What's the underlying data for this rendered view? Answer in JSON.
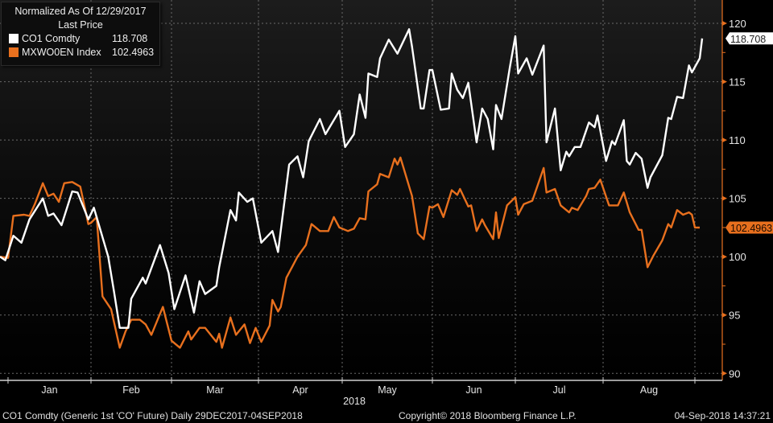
{
  "legend": {
    "title": "Normalized As Of 12/29/2017",
    "subtitle": "Last Price",
    "items": [
      {
        "name": "CO1 Comdty",
        "value": "118.708",
        "color": "#ffffff"
      },
      {
        "name": "MXWO0EN Index",
        "value": "102.4963",
        "color": "#e8701e"
      }
    ]
  },
  "footer": {
    "left": "CO1 Comdty (Generic 1st 'CO' Future)  Daily 29DEC2017-04SEP2018",
    "center": "Copyright© 2018 Bloomberg Finance L.P.",
    "right": "04-Sep-2018 14:37:21"
  },
  "colors": {
    "background": "#000000",
    "axis": "#e8701e",
    "grid": "#6a6a6a"
  },
  "chart_data": {
    "type": "line",
    "title": "Normalized As Of 12/29/2017",
    "xlabel": "2018",
    "ylabel": "",
    "x_type": "date",
    "xlim": [
      "2017-12-29",
      "2018-09-04"
    ],
    "ylim": [
      89.4,
      122
    ],
    "y_axis_side": "right",
    "yticks": [
      90,
      95,
      100,
      105,
      110,
      115,
      120
    ],
    "month_ticks": [
      {
        "date": "2018-01-01",
        "label": "Jan"
      },
      {
        "date": "2018-02-01",
        "label": "Feb"
      },
      {
        "date": "2018-03-01",
        "label": "Mar"
      },
      {
        "date": "2018-04-01",
        "label": "Apr"
      },
      {
        "date": "2018-05-01",
        "label": "May"
      },
      {
        "date": "2018-06-01",
        "label": "Jun"
      },
      {
        "date": "2018-07-01",
        "label": "Jul"
      },
      {
        "date": "2018-08-01",
        "label": "Aug"
      },
      {
        "date": "2018-09-01",
        "label": ""
      }
    ],
    "year_label": "2018",
    "grid": true,
    "legend_position": "top-left",
    "series": [
      {
        "name": "CO1 Comdty",
        "color": "#ffffff",
        "last_value": "118.708",
        "points": [
          [
            "2017-12-29",
            100.0
          ],
          [
            "2017-12-31",
            99.7
          ],
          [
            "2018-01-03",
            101.8
          ],
          [
            "2018-01-06",
            101.2
          ],
          [
            "2018-01-09",
            103.2
          ],
          [
            "2018-01-14",
            105.0
          ],
          [
            "2018-01-16",
            103.5
          ],
          [
            "2018-01-18",
            103.7
          ],
          [
            "2018-01-21",
            102.7
          ],
          [
            "2018-01-25",
            105.6
          ],
          [
            "2018-01-27",
            105.5
          ],
          [
            "2018-01-31",
            103.2
          ],
          [
            "2018-02-02",
            104.2
          ],
          [
            "2018-02-07",
            100.0
          ],
          [
            "2018-02-09",
            97.0
          ],
          [
            "2018-02-11",
            93.9
          ],
          [
            "2018-02-14",
            93.9
          ],
          [
            "2018-02-15",
            96.4
          ],
          [
            "2018-02-19",
            98.2
          ],
          [
            "2018-02-20",
            97.7
          ],
          [
            "2018-02-25",
            101.0
          ],
          [
            "2018-02-28",
            98.6
          ],
          [
            "2018-03-02",
            95.5
          ],
          [
            "2018-03-06",
            98.4
          ],
          [
            "2018-03-09",
            95.2
          ],
          [
            "2018-03-11",
            97.9
          ],
          [
            "2018-03-13",
            96.8
          ],
          [
            "2018-03-17",
            97.5
          ],
          [
            "2018-03-18",
            99.1
          ],
          [
            "2018-03-22",
            104.0
          ],
          [
            "2018-03-24",
            103.1
          ],
          [
            "2018-03-25",
            105.5
          ],
          [
            "2018-03-28",
            104.7
          ],
          [
            "2018-03-30",
            105.0
          ],
          [
            "2018-04-02",
            101.2
          ],
          [
            "2018-04-06",
            102.2
          ],
          [
            "2018-04-08",
            100.4
          ],
          [
            "2018-04-12",
            107.9
          ],
          [
            "2018-04-15",
            108.6
          ],
          [
            "2018-04-17",
            106.8
          ],
          [
            "2018-04-19",
            109.9
          ],
          [
            "2018-04-23",
            111.8
          ],
          [
            "2018-04-25",
            110.5
          ],
          [
            "2018-04-30",
            112.5
          ],
          [
            "2018-05-02",
            109.4
          ],
          [
            "2018-05-05",
            110.5
          ],
          [
            "2018-05-07",
            113.9
          ],
          [
            "2018-05-09",
            111.9
          ],
          [
            "2018-05-10",
            115.7
          ],
          [
            "2018-05-13",
            115.4
          ],
          [
            "2018-05-14",
            117.0
          ],
          [
            "2018-05-17",
            118.6
          ],
          [
            "2018-05-20",
            117.4
          ],
          [
            "2018-05-24",
            119.5
          ],
          [
            "2018-05-25",
            118.0
          ],
          [
            "2018-05-28",
            112.7
          ],
          [
            "2018-05-29",
            112.7
          ],
          [
            "2018-05-31",
            116.0
          ],
          [
            "2018-06-01",
            116.0
          ],
          [
            "2018-06-04",
            112.6
          ],
          [
            "2018-06-07",
            112.7
          ],
          [
            "2018-06-08",
            115.7
          ],
          [
            "2018-06-10",
            114.3
          ],
          [
            "2018-06-12",
            113.6
          ],
          [
            "2018-06-14",
            114.9
          ],
          [
            "2018-06-17",
            109.8
          ],
          [
            "2018-06-19",
            112.7
          ],
          [
            "2018-06-21",
            111.8
          ],
          [
            "2018-06-23",
            109.2
          ],
          [
            "2018-06-24",
            113.0
          ],
          [
            "2018-06-26",
            111.8
          ],
          [
            "2018-06-29",
            116.2
          ],
          [
            "2018-07-01",
            118.9
          ],
          [
            "2018-07-02",
            115.7
          ],
          [
            "2018-07-05",
            117.0
          ],
          [
            "2018-07-07",
            115.6
          ],
          [
            "2018-07-11",
            118.1
          ],
          [
            "2018-07-12",
            109.8
          ],
          [
            "2018-07-15",
            112.7
          ],
          [
            "2018-07-17",
            107.4
          ],
          [
            "2018-07-19",
            109.0
          ],
          [
            "2018-07-20",
            108.6
          ],
          [
            "2018-07-22",
            109.4
          ],
          [
            "2018-07-24",
            109.4
          ],
          [
            "2018-07-27",
            111.5
          ],
          [
            "2018-07-29",
            111.1
          ],
          [
            "2018-07-30",
            112.1
          ],
          [
            "2018-08-02",
            108.2
          ],
          [
            "2018-08-04",
            109.9
          ],
          [
            "2018-08-05",
            109.6
          ],
          [
            "2018-08-08",
            111.7
          ],
          [
            "2018-08-09",
            108.2
          ],
          [
            "2018-08-10",
            107.9
          ],
          [
            "2018-08-12",
            108.9
          ],
          [
            "2018-08-14",
            108.4
          ],
          [
            "2018-08-16",
            105.9
          ],
          [
            "2018-08-17",
            106.8
          ],
          [
            "2018-08-21",
            108.7
          ],
          [
            "2018-08-23",
            111.9
          ],
          [
            "2018-08-24",
            111.8
          ],
          [
            "2018-08-26",
            113.7
          ],
          [
            "2018-08-28",
            113.6
          ],
          [
            "2018-08-30",
            116.4
          ],
          [
            "2018-08-31",
            115.8
          ],
          [
            "2018-09-03",
            117.0
          ],
          [
            "2018-09-04",
            118.708
          ]
        ]
      },
      {
        "name": "MXWO0EN Index",
        "color": "#e8701e",
        "last_value": "102.4963",
        "points": [
          [
            "2017-12-29",
            100.0
          ],
          [
            "2018-01-01",
            99.9
          ],
          [
            "2018-01-03",
            103.5
          ],
          [
            "2018-01-07",
            103.6
          ],
          [
            "2018-01-09",
            103.5
          ],
          [
            "2018-01-11",
            104.5
          ],
          [
            "2018-01-14",
            106.3
          ],
          [
            "2018-01-16",
            105.2
          ],
          [
            "2018-01-18",
            105.4
          ],
          [
            "2018-01-20",
            104.7
          ],
          [
            "2018-01-22",
            106.3
          ],
          [
            "2018-01-25",
            106.4
          ],
          [
            "2018-01-28",
            106.0
          ],
          [
            "2018-01-31",
            102.8
          ],
          [
            "2018-02-01",
            102.9
          ],
          [
            "2018-02-03",
            103.4
          ],
          [
            "2018-02-05",
            96.6
          ],
          [
            "2018-02-08",
            95.5
          ],
          [
            "2018-02-11",
            92.2
          ],
          [
            "2018-02-13",
            93.6
          ],
          [
            "2018-02-15",
            94.6
          ],
          [
            "2018-02-18",
            94.6
          ],
          [
            "2018-02-20",
            94.2
          ],
          [
            "2018-02-22",
            93.3
          ],
          [
            "2018-02-26",
            95.7
          ],
          [
            "2018-03-01",
            92.8
          ],
          [
            "2018-03-04",
            92.2
          ],
          [
            "2018-03-07",
            93.6
          ],
          [
            "2018-03-08",
            92.9
          ],
          [
            "2018-03-11",
            93.9
          ],
          [
            "2018-03-13",
            93.9
          ],
          [
            "2018-03-17",
            92.7
          ],
          [
            "2018-03-18",
            93.4
          ],
          [
            "2018-03-19",
            92.2
          ],
          [
            "2018-03-22",
            94.8
          ],
          [
            "2018-03-24",
            93.3
          ],
          [
            "2018-03-27",
            94.2
          ],
          [
            "2018-03-29",
            92.6
          ],
          [
            "2018-03-31",
            93.9
          ],
          [
            "2018-04-02",
            92.7
          ],
          [
            "2018-04-05",
            94.1
          ],
          [
            "2018-04-06",
            96.3
          ],
          [
            "2018-04-08",
            95.3
          ],
          [
            "2018-04-09",
            95.7
          ],
          [
            "2018-04-11",
            98.2
          ],
          [
            "2018-04-13",
            99.1
          ],
          [
            "2018-04-15",
            100.0
          ],
          [
            "2018-04-18",
            101.0
          ],
          [
            "2018-04-20",
            102.8
          ],
          [
            "2018-04-23",
            102.2
          ],
          [
            "2018-04-26",
            102.2
          ],
          [
            "2018-04-28",
            103.4
          ],
          [
            "2018-04-30",
            102.5
          ],
          [
            "2018-05-03",
            102.2
          ],
          [
            "2018-05-05",
            102.4
          ],
          [
            "2018-05-07",
            103.3
          ],
          [
            "2018-05-09",
            103.2
          ],
          [
            "2018-05-10",
            105.6
          ],
          [
            "2018-05-13",
            106.2
          ],
          [
            "2018-05-14",
            107.1
          ],
          [
            "2018-05-17",
            106.8
          ],
          [
            "2018-05-19",
            108.4
          ],
          [
            "2018-05-20",
            107.9
          ],
          [
            "2018-05-21",
            108.5
          ],
          [
            "2018-05-25",
            105.2
          ],
          [
            "2018-05-27",
            102.0
          ],
          [
            "2018-05-29",
            101.5
          ],
          [
            "2018-05-31",
            104.3
          ],
          [
            "2018-06-01",
            104.2
          ],
          [
            "2018-06-03",
            104.5
          ],
          [
            "2018-06-05",
            103.4
          ],
          [
            "2018-06-08",
            105.7
          ],
          [
            "2018-06-10",
            105.3
          ],
          [
            "2018-06-11",
            105.8
          ],
          [
            "2018-06-14",
            104.3
          ],
          [
            "2018-06-15",
            104.4
          ],
          [
            "2018-06-17",
            102.2
          ],
          [
            "2018-06-19",
            103.2
          ],
          [
            "2018-06-20",
            102.7
          ],
          [
            "2018-06-23",
            101.5
          ],
          [
            "2018-06-24",
            103.8
          ],
          [
            "2018-06-25",
            101.6
          ],
          [
            "2018-06-28",
            104.4
          ],
          [
            "2018-07-01",
            105.1
          ],
          [
            "2018-07-02",
            103.6
          ],
          [
            "2018-07-04",
            104.5
          ],
          [
            "2018-07-07",
            104.8
          ],
          [
            "2018-07-11",
            107.6
          ],
          [
            "2018-07-12",
            105.5
          ],
          [
            "2018-07-15",
            105.8
          ],
          [
            "2018-07-17",
            104.4
          ],
          [
            "2018-07-20",
            103.8
          ],
          [
            "2018-07-21",
            104.2
          ],
          [
            "2018-07-23",
            104.0
          ],
          [
            "2018-07-26",
            105.2
          ],
          [
            "2018-07-27",
            105.8
          ],
          [
            "2018-07-29",
            105.9
          ],
          [
            "2018-07-31",
            106.6
          ],
          [
            "2018-08-03",
            104.4
          ],
          [
            "2018-08-06",
            104.4
          ],
          [
            "2018-08-08",
            105.5
          ],
          [
            "2018-08-10",
            103.8
          ],
          [
            "2018-08-13",
            102.3
          ],
          [
            "2018-08-14",
            102.3
          ],
          [
            "2018-08-16",
            99.1
          ],
          [
            "2018-08-18",
            100.1
          ],
          [
            "2018-08-21",
            101.4
          ],
          [
            "2018-08-23",
            102.8
          ],
          [
            "2018-08-24",
            102.5
          ],
          [
            "2018-08-26",
            104.0
          ],
          [
            "2018-08-28",
            103.6
          ],
          [
            "2018-08-30",
            103.8
          ],
          [
            "2018-08-31",
            103.6
          ],
          [
            "2018-09-01",
            102.5
          ],
          [
            "2018-09-03",
            102.4963
          ]
        ]
      }
    ]
  }
}
